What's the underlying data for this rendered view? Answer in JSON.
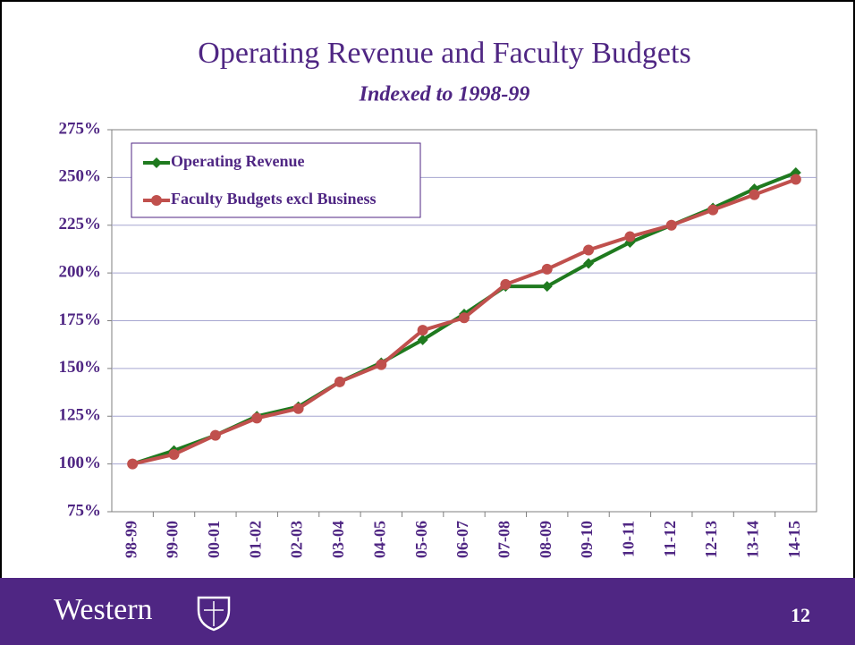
{
  "chart_data": {
    "type": "line",
    "title": "Operating Revenue and Faculty Budgets",
    "subtitle": "Indexed to 1998-99",
    "categories": [
      "98-99",
      "99-00",
      "00-01",
      "01-02",
      "02-03",
      "03-04",
      "04-05",
      "05-06",
      "06-07",
      "07-08",
      "08-09",
      "09-10",
      "10-11",
      "11-12",
      "12-13",
      "13-14",
      "14-15"
    ],
    "series": [
      {
        "name": "Operating Revenue",
        "color": "#1f7a1f",
        "marker": "diamond",
        "values": [
          100,
          107,
          115,
          125,
          130,
          143,
          153,
          165,
          178.5,
          193,
          193,
          205,
          216,
          225,
          234,
          244,
          252.5
        ]
      },
      {
        "name": "Faculty Budgets excl Business",
        "color": "#c0504d",
        "marker": "circle",
        "values": [
          100,
          105,
          115,
          124,
          129,
          143,
          152,
          170,
          176.5,
          194,
          202,
          212,
          219,
          225,
          233,
          241,
          249
        ]
      }
    ],
    "ylim": [
      75,
      275
    ],
    "yticks": [
      {
        "value": 75,
        "label": "75%"
      },
      {
        "value": 100,
        "label": "100%"
      },
      {
        "value": 125,
        "label": "125%"
      },
      {
        "value": 150,
        "label": "150%"
      },
      {
        "value": 175,
        "label": "175%"
      },
      {
        "value": 200,
        "label": "200%"
      },
      {
        "value": 225,
        "label": "225%"
      },
      {
        "value": 250,
        "label": "250%"
      },
      {
        "value": 275,
        "label": "275%"
      }
    ],
    "grid": true,
    "legend": "top-left"
  },
  "footer": {
    "logo": "Western",
    "page_number": "12"
  }
}
